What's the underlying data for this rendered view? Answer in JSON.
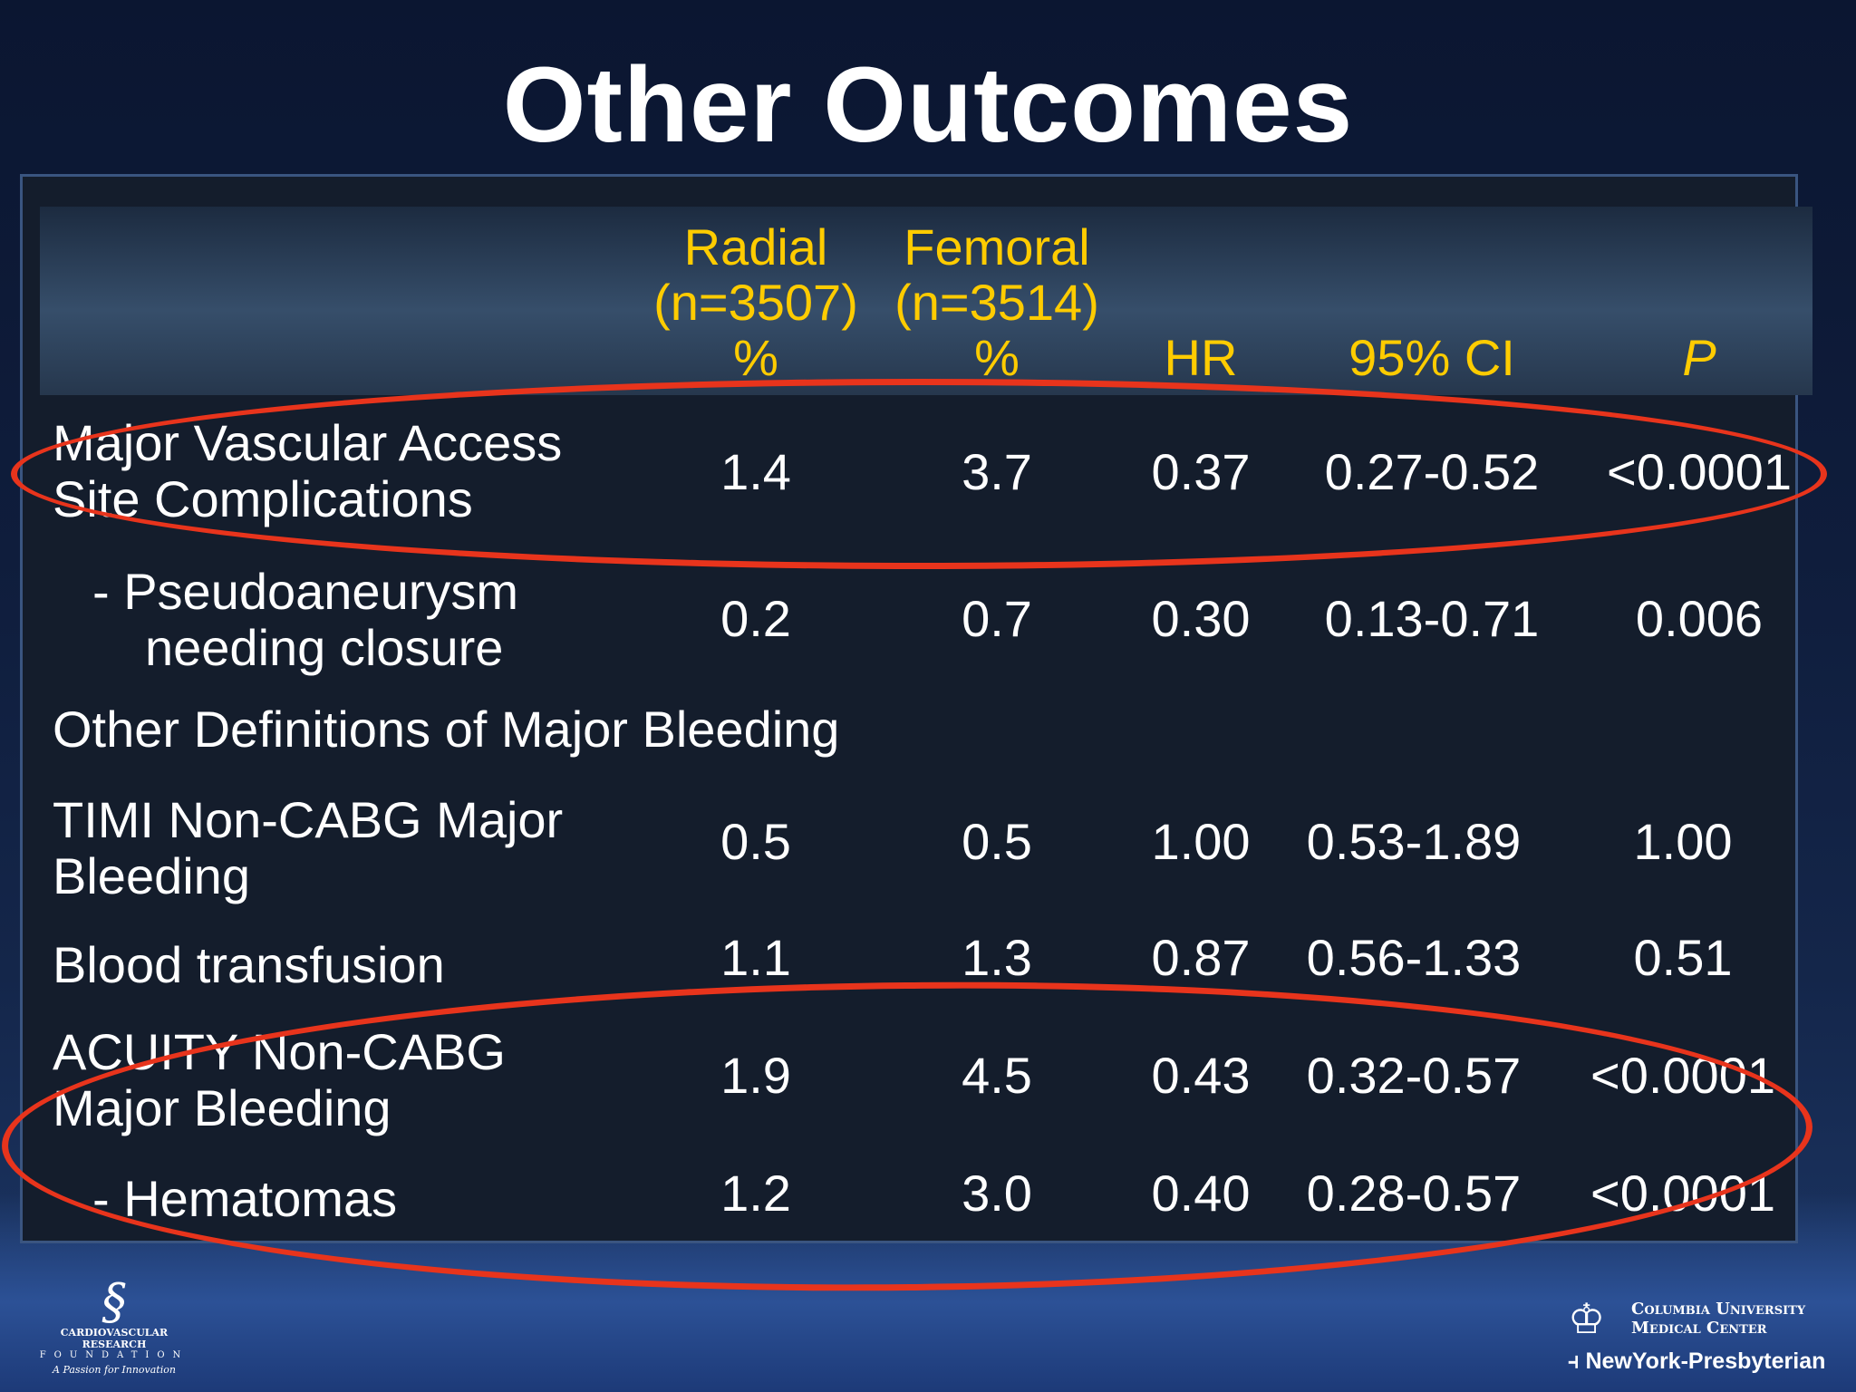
{
  "slide": {
    "title": "Other Outcomes"
  },
  "table": {
    "headers": {
      "radial": [
        "Radial",
        "(n=3507)",
        "%"
      ],
      "femoral": [
        "Femoral",
        "(n=3514)",
        "%"
      ],
      "hr": "HR",
      "ci": "95% CI",
      "p": "P"
    },
    "rows": [
      {
        "label": [
          "Major Vascular  Access",
          "Site Complications"
        ],
        "radial": "1.4",
        "femoral": "3.7",
        "hr": "0.37",
        "ci": "0.27-0.52",
        "p": "<0.0001"
      },
      {
        "label": [
          "- Pseudoaneurysm",
          "needing closure"
        ],
        "radial": "0.2",
        "femoral": "0.7",
        "hr": "0.30",
        "ci": "0.13-0.71",
        "p": "0.006"
      },
      {
        "label": [
          "Other Definitions of Major Bleeding"
        ]
      },
      {
        "label": [
          "TIMI Non-CABG Major",
          "Bleeding"
        ],
        "radial": "0.5",
        "femoral": "0.5",
        "hr": "1.00",
        "ci": "0.53-1.89",
        "p": "1.00"
      },
      {
        "label": [
          "Blood transfusion"
        ],
        "radial": "1.1",
        "femoral": "1.3",
        "hr": "0.87",
        "ci": "0.56-1.33",
        "p": "0.51"
      },
      {
        "label": [
          "ACUITY Non-CABG",
          "Major Bleeding"
        ],
        "radial": "1.9",
        "femoral": "4.5",
        "hr": "0.43",
        "ci": "0.32-0.57",
        "p": "<0.0001"
      },
      {
        "label": [
          "- Hematomas"
        ],
        "radial": "1.2",
        "femoral": "3.0",
        "hr": "0.40",
        "ci": "0.28-0.57",
        "p": "<0.0001"
      }
    ]
  },
  "logos": {
    "crf_name": "CARDIOVASCULAR RESEARCH",
    "crf_foundation": "FOUNDATION",
    "crf_tagline": "A Passion for Innovation",
    "cumc_line1": "Columbia University",
    "cumc_line2": "Medical Center",
    "nyp": "NewYork-Presbyterian"
  },
  "colors": {
    "header_text": "#ffcc00",
    "body_text": "#ffffff",
    "highlight": "#e8341c",
    "panel": "#141d2c"
  }
}
